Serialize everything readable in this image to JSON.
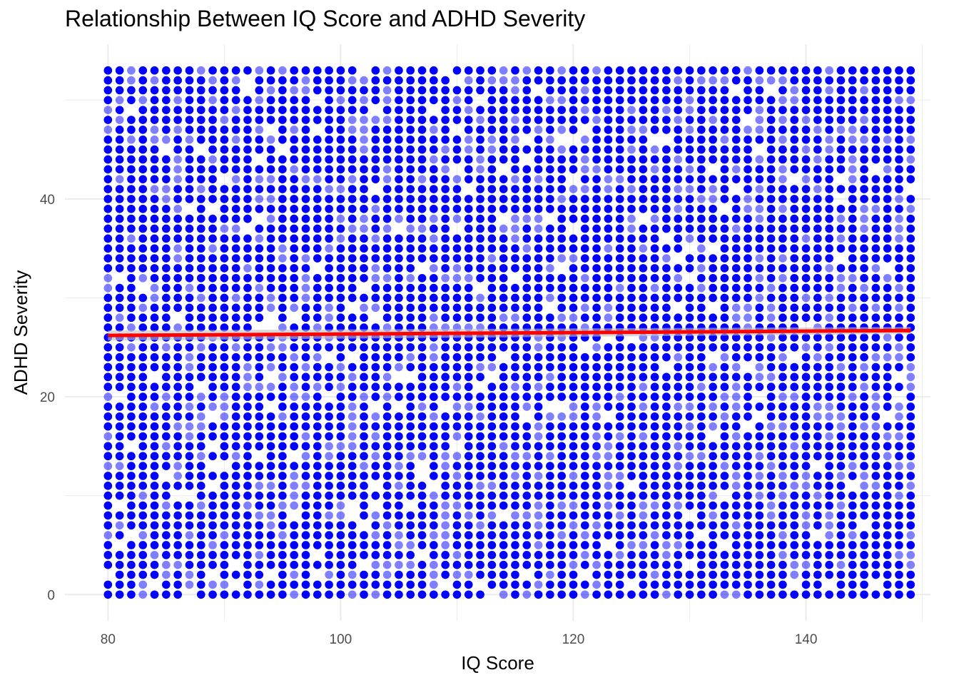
{
  "chart_data": {
    "type": "scatter",
    "title": "Relationship Between IQ Score and ADHD Severity",
    "xlabel": "IQ Score",
    "ylabel": "ADHD Severity",
    "xlim": [
      76.3,
      150.7
    ],
    "ylim": [
      -2.65,
      55.65
    ],
    "x_ticks": [
      80,
      100,
      120,
      140
    ],
    "y_ticks": [
      0,
      20,
      40
    ],
    "x_tick_labels": [
      "80",
      "100",
      "120",
      "140"
    ],
    "y_tick_labels": [
      "0",
      "20",
      "40"
    ],
    "grid": true,
    "legend": "none",
    "points": {
      "x_range": [
        80,
        149
      ],
      "y_range": [
        0,
        53
      ],
      "step": 1,
      "description_of_fill": "integer grid of observations covering nearly every IQ/severity combination; overlapping points appear darker",
      "missing_cells_approx": [
        [
          80,
          2
        ],
        [
          82,
          6
        ],
        [
          85,
          12
        ],
        [
          89,
          18
        ],
        [
          91,
          3
        ],
        [
          93,
          27
        ],
        [
          96,
          14
        ],
        [
          98,
          33
        ],
        [
          101,
          9
        ],
        [
          103,
          41
        ],
        [
          105,
          22
        ],
        [
          107,
          4
        ],
        [
          108,
          49
        ],
        [
          110,
          15
        ],
        [
          112,
          31
        ],
        [
          114,
          8
        ],
        [
          116,
          44
        ],
        [
          118,
          19
        ],
        [
          120,
          37
        ],
        [
          121,
          2
        ],
        [
          123,
          26
        ],
        [
          125,
          11
        ],
        [
          127,
          46
        ],
        [
          129,
          29
        ],
        [
          131,
          6
        ],
        [
          133,
          39
        ],
        [
          135,
          17
        ],
        [
          137,
          51
        ],
        [
          139,
          24
        ],
        [
          141,
          13
        ],
        [
          143,
          42
        ],
        [
          145,
          7
        ],
        [
          147,
          33
        ],
        [
          148,
          20
        ]
      ]
    },
    "series": [
      {
        "name": "",
        "type": "trend",
        "x": [
          80,
          149
        ],
        "y": [
          26.2,
          26.7
        ]
      }
    ],
    "colors": {
      "points": "#0000ff",
      "trend": "#ff0000",
      "band": "#bfbfbf",
      "grid": "#ebebeb"
    }
  }
}
